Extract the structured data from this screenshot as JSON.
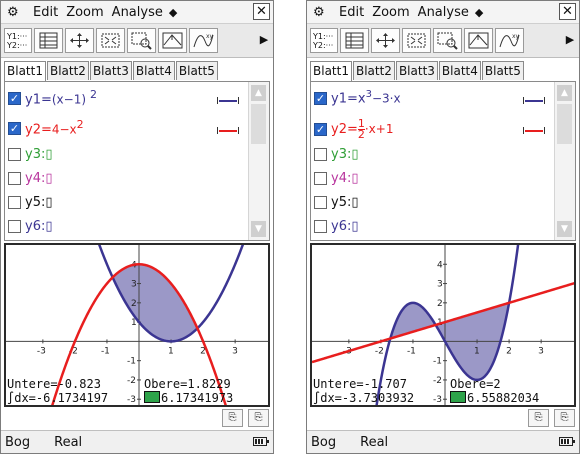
{
  "menu": {
    "items": [
      "Edit",
      "Zoom",
      "Analyse"
    ],
    "close": "✕"
  },
  "toolbar": {
    "first_icon_line1": "Y1:···",
    "first_icon_line2": "Y2:···",
    "more": "▶"
  },
  "tabs": [
    "Blatt1",
    "Blatt2",
    "Blatt3",
    "Blatt4",
    "Blatt5"
  ],
  "colors": {
    "blue": "#3b3592",
    "red": "#e81e1e",
    "green": "#2e9e35",
    "magenta": "#b8349d",
    "black": "#111111",
    "fill": "#9b98c7"
  },
  "screens": [
    {
      "functions": [
        {
          "label": "y1=",
          "expr": "(x−1)",
          "sup": "2",
          "checked": true,
          "color": "#3b3592",
          "swatch": true
        },
        {
          "label": "y2=",
          "expr": "4−x",
          "sup": "2",
          "checked": true,
          "color": "#e81e1e",
          "swatch": true
        },
        {
          "label": "y3:",
          "expr": "▯",
          "sup": "",
          "checked": false,
          "color": "#2e9e35",
          "swatch": false
        },
        {
          "label": "y4:",
          "expr": "▯",
          "sup": "",
          "checked": false,
          "color": "#b8349d",
          "swatch": false
        },
        {
          "label": "y5:",
          "expr": "▯",
          "sup": "",
          "checked": false,
          "color": "#111111",
          "swatch": false
        },
        {
          "label": "y6:",
          "expr": "▯",
          "sup": "",
          "checked": false,
          "color": "#3b3592",
          "swatch": false
        }
      ],
      "graph": {
        "x_ticks": [
          "-3",
          "-2",
          "-1",
          "1",
          "2",
          "3"
        ],
        "y_ticks": [
          "4",
          "3",
          "2",
          "1",
          "-1",
          "-2",
          "-3"
        ],
        "lower_label": "Untere=",
        "lower_value": "-0.823",
        "upper_label": "Obere=",
        "upper_value": "1.8229",
        "integral_label": "∫dx=",
        "integral_value": "-6.1734197",
        "area_value": "6.17341973"
      }
    },
    {
      "functions": [
        {
          "label": "y1=",
          "expr": "x",
          "sup": "3",
          "tail": "−3·x",
          "checked": true,
          "color": "#3b3592",
          "swatch": true
        },
        {
          "label": "y2=",
          "expr": "1/2",
          "sup": "",
          "tail": "·x+1",
          "checked": true,
          "color": "#e81e1e",
          "swatch": true
        },
        {
          "label": "y3:",
          "expr": "▯",
          "sup": "",
          "checked": false,
          "color": "#2e9e35",
          "swatch": false
        },
        {
          "label": "y4:",
          "expr": "▯",
          "sup": "",
          "checked": false,
          "color": "#b8349d",
          "swatch": false
        },
        {
          "label": "y5:",
          "expr": "▯",
          "sup": "",
          "checked": false,
          "color": "#111111",
          "swatch": false
        },
        {
          "label": "y6:",
          "expr": "▯",
          "sup": "",
          "checked": false,
          "color": "#3b3592",
          "swatch": false
        }
      ],
      "graph": {
        "x_ticks": [
          "-3",
          "-2",
          "-1",
          "1",
          "2",
          "3"
        ],
        "y_ticks": [
          "4",
          "3",
          "2",
          "1",
          "-1",
          "-2",
          "-3"
        ],
        "lower_label": "Untere=",
        "lower_value": "-1.707",
        "upper_label": "Obere=",
        "upper_value": "2",
        "integral_label": "∫dx=",
        "integral_value": "-3.7303932",
        "area_value": "6.55882034"
      }
    }
  ],
  "status": {
    "left": "Bog",
    "mode": "Real"
  }
}
